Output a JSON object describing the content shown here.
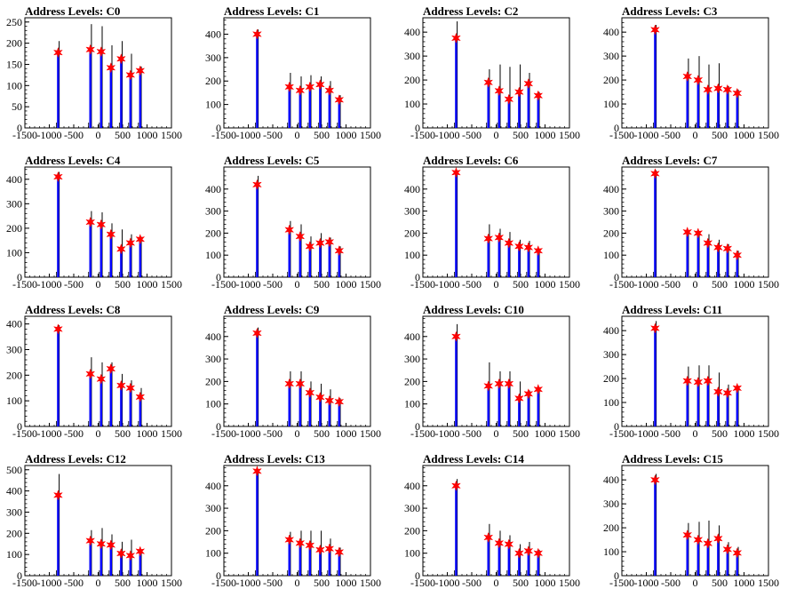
{
  "chart_data": [
    {
      "type": "bar",
      "title": "Address Levels: C0",
      "xlim": [
        -1500,
        1500
      ],
      "ylim": [
        0,
        260
      ],
      "yticks": [
        0,
        50,
        100,
        150,
        200,
        250
      ],
      "xticks": [
        -1500,
        -1000,
        -500,
        0,
        500,
        1000,
        1500
      ],
      "series": [
        {
          "values": [
            {
              "x": -820,
              "y": 205,
              "peak": 178
            },
            {
              "x": -160,
              "y": 245,
              "peak": 185
            },
            {
              "x": 60,
              "y": 240,
              "peak": 180
            },
            {
              "x": 260,
              "y": 195,
              "peak": 142
            },
            {
              "x": 470,
              "y": 205,
              "peak": 163
            },
            {
              "x": 660,
              "y": 175,
              "peak": 125
            },
            {
              "x": 860,
              "y": 145,
              "peak": 135
            }
          ]
        }
      ]
    },
    {
      "type": "bar",
      "title": "Address Levels: C1",
      "xlim": [
        -1500,
        1500
      ],
      "ylim": [
        0,
        470
      ],
      "yticks": [
        0,
        100,
        200,
        300,
        400
      ],
      "xticks": [
        -1500,
        -1000,
        -500,
        0,
        500,
        1000,
        1500
      ],
      "series": [
        {
          "values": [
            {
              "x": -820,
              "y": 420,
              "peak": 400
            },
            {
              "x": -160,
              "y": 235,
              "peak": 175
            },
            {
              "x": 60,
              "y": 220,
              "peak": 160
            },
            {
              "x": 260,
              "y": 225,
              "peak": 175
            },
            {
              "x": 470,
              "y": 220,
              "peak": 185
            },
            {
              "x": 660,
              "y": 200,
              "peak": 160
            },
            {
              "x": 860,
              "y": 140,
              "peak": 120
            }
          ]
        }
      ]
    },
    {
      "type": "bar",
      "title": "Address Levels: C2",
      "xlim": [
        -1500,
        1500
      ],
      "ylim": [
        0,
        460
      ],
      "yticks": [
        0,
        100,
        200,
        300,
        400
      ],
      "xticks": [
        -1500,
        -1000,
        -500,
        0,
        500,
        1000,
        1500
      ],
      "series": [
        {
          "values": [
            {
              "x": -820,
              "y": 445,
              "peak": 375
            },
            {
              "x": -160,
              "y": 245,
              "peak": 190
            },
            {
              "x": 60,
              "y": 265,
              "peak": 155
            },
            {
              "x": 260,
              "y": 255,
              "peak": 120
            },
            {
              "x": 470,
              "y": 265,
              "peak": 150
            },
            {
              "x": 660,
              "y": 230,
              "peak": 185
            },
            {
              "x": 860,
              "y": 150,
              "peak": 135
            }
          ]
        }
      ]
    },
    {
      "type": "bar",
      "title": "Address Levels: C3",
      "xlim": [
        -1500,
        1500
      ],
      "ylim": [
        0,
        460
      ],
      "yticks": [
        0,
        100,
        200,
        300,
        400
      ],
      "xticks": [
        -1500,
        -1000,
        -500,
        0,
        500,
        1000,
        1500
      ],
      "series": [
        {
          "values": [
            {
              "x": -820,
              "y": 430,
              "peak": 410
            },
            {
              "x": -160,
              "y": 290,
              "peak": 215
            },
            {
              "x": 60,
              "y": 300,
              "peak": 200
            },
            {
              "x": 260,
              "y": 265,
              "peak": 160
            },
            {
              "x": 470,
              "y": 270,
              "peak": 165
            },
            {
              "x": 660,
              "y": 175,
              "peak": 160
            },
            {
              "x": 860,
              "y": 160,
              "peak": 145
            }
          ]
        }
      ]
    },
    {
      "type": "bar",
      "title": "Address Levels: C4",
      "xlim": [
        -1500,
        1500
      ],
      "ylim": [
        0,
        450
      ],
      "yticks": [
        0,
        100,
        200,
        300,
        400
      ],
      "xticks": [
        -1500,
        -1000,
        -500,
        0,
        500,
        1000,
        1500
      ],
      "series": [
        {
          "values": [
            {
              "x": -820,
              "y": 430,
              "peak": 410
            },
            {
              "x": -160,
              "y": 270,
              "peak": 225
            },
            {
              "x": 60,
              "y": 265,
              "peak": 215
            },
            {
              "x": 260,
              "y": 220,
              "peak": 175
            },
            {
              "x": 470,
              "y": 195,
              "peak": 115
            },
            {
              "x": 660,
              "y": 175,
              "peak": 140
            },
            {
              "x": 860,
              "y": 165,
              "peak": 155
            }
          ]
        }
      ]
    },
    {
      "type": "bar",
      "title": "Address Levels: C5",
      "xlim": [
        -1500,
        1500
      ],
      "ylim": [
        0,
        500
      ],
      "yticks": [
        0,
        100,
        200,
        300,
        400
      ],
      "xticks": [
        -1500,
        -1000,
        -500,
        0,
        500,
        1000,
        1500
      ],
      "series": [
        {
          "values": [
            {
              "x": -820,
              "y": 460,
              "peak": 420
            },
            {
              "x": -160,
              "y": 255,
              "peak": 215
            },
            {
              "x": 60,
              "y": 240,
              "peak": 185
            },
            {
              "x": 260,
              "y": 185,
              "peak": 140
            },
            {
              "x": 470,
              "y": 200,
              "peak": 155
            },
            {
              "x": 660,
              "y": 180,
              "peak": 160
            },
            {
              "x": 860,
              "y": 140,
              "peak": 120
            }
          ]
        }
      ]
    },
    {
      "type": "bar",
      "title": "Address Levels: C6",
      "xlim": [
        -1500,
        1500
      ],
      "ylim": [
        0,
        500
      ],
      "yticks": [
        0,
        100,
        200,
        300,
        400
      ],
      "xticks": [
        -1500,
        -1000,
        -500,
        0,
        500,
        1000,
        1500
      ],
      "series": [
        {
          "values": [
            {
              "x": -820,
              "y": 485,
              "peak": 475
            },
            {
              "x": -160,
              "y": 240,
              "peak": 175
            },
            {
              "x": 60,
              "y": 220,
              "peak": 180
            },
            {
              "x": 260,
              "y": 205,
              "peak": 155
            },
            {
              "x": 470,
              "y": 170,
              "peak": 140
            },
            {
              "x": 660,
              "y": 165,
              "peak": 135
            },
            {
              "x": 860,
              "y": 130,
              "peak": 120
            }
          ]
        }
      ]
    },
    {
      "type": "bar",
      "title": "Address Levels: C7",
      "xlim": [
        -1500,
        1500
      ],
      "ylim": [
        0,
        500
      ],
      "yticks": [
        0,
        100,
        200,
        300,
        400
      ],
      "xticks": [
        -1500,
        -1000,
        -500,
        0,
        500,
        1000,
        1500
      ],
      "series": [
        {
          "values": [
            {
              "x": -820,
              "y": 485,
              "peak": 470
            },
            {
              "x": -160,
              "y": 210,
              "peak": 205
            },
            {
              "x": 60,
              "y": 210,
              "peak": 200
            },
            {
              "x": 260,
              "y": 195,
              "peak": 155
            },
            {
              "x": 470,
              "y": 170,
              "peak": 135
            },
            {
              "x": 660,
              "y": 150,
              "peak": 130
            },
            {
              "x": 860,
              "y": 120,
              "peak": 100
            }
          ]
        }
      ]
    },
    {
      "type": "bar",
      "title": "Address Levels: C8",
      "xlim": [
        -1500,
        1500
      ],
      "ylim": [
        0,
        430
      ],
      "yticks": [
        0,
        100,
        200,
        300,
        400
      ],
      "xticks": [
        -1500,
        -1000,
        -500,
        0,
        500,
        1000,
        1500
      ],
      "series": [
        {
          "values": [
            {
              "x": -820,
              "y": 395,
              "peak": 380
            },
            {
              "x": -160,
              "y": 270,
              "peak": 205
            },
            {
              "x": 60,
              "y": 250,
              "peak": 185
            },
            {
              "x": 260,
              "y": 250,
              "peak": 225
            },
            {
              "x": 470,
              "y": 205,
              "peak": 160
            },
            {
              "x": 660,
              "y": 180,
              "peak": 150
            },
            {
              "x": 860,
              "y": 150,
              "peak": 115
            }
          ]
        }
      ]
    },
    {
      "type": "bar",
      "title": "Address Levels: C9",
      "xlim": [
        -1500,
        1500
      ],
      "ylim": [
        0,
        490
      ],
      "yticks": [
        0,
        100,
        200,
        300,
        400
      ],
      "xticks": [
        -1500,
        -1000,
        -500,
        0,
        500,
        1000,
        1500
      ],
      "series": [
        {
          "values": [
            {
              "x": -820,
              "y": 440,
              "peak": 415
            },
            {
              "x": -160,
              "y": 245,
              "peak": 190
            },
            {
              "x": 60,
              "y": 245,
              "peak": 190
            },
            {
              "x": 260,
              "y": 200,
              "peak": 150
            },
            {
              "x": 470,
              "y": 190,
              "peak": 130
            },
            {
              "x": 660,
              "y": 165,
              "peak": 115
            },
            {
              "x": 860,
              "y": 125,
              "peak": 110
            }
          ]
        }
      ]
    },
    {
      "type": "bar",
      "title": "Address Levels: C10",
      "xlim": [
        -1500,
        1500
      ],
      "ylim": [
        0,
        490
      ],
      "yticks": [
        0,
        100,
        200,
        300,
        400
      ],
      "xticks": [
        -1500,
        -1000,
        -500,
        0,
        500,
        1000,
        1500
      ],
      "series": [
        {
          "values": [
            {
              "x": -820,
              "y": 455,
              "peak": 400
            },
            {
              "x": -160,
              "y": 285,
              "peak": 180
            },
            {
              "x": 60,
              "y": 245,
              "peak": 190
            },
            {
              "x": 260,
              "y": 245,
              "peak": 190
            },
            {
              "x": 470,
              "y": 200,
              "peak": 125
            },
            {
              "x": 660,
              "y": 160,
              "peak": 145
            },
            {
              "x": 860,
              "y": 175,
              "peak": 165
            }
          ]
        }
      ]
    },
    {
      "type": "bar",
      "title": "Address Levels: C11",
      "xlim": [
        -1500,
        1500
      ],
      "ylim": [
        0,
        460
      ],
      "yticks": [
        0,
        100,
        200,
        300,
        400
      ],
      "xticks": [
        -1500,
        -1000,
        -500,
        0,
        500,
        1000,
        1500
      ],
      "series": [
        {
          "values": [
            {
              "x": -820,
              "y": 440,
              "peak": 410
            },
            {
              "x": -160,
              "y": 250,
              "peak": 190
            },
            {
              "x": 60,
              "y": 255,
              "peak": 185
            },
            {
              "x": 260,
              "y": 255,
              "peak": 190
            },
            {
              "x": 470,
              "y": 225,
              "peak": 145
            },
            {
              "x": 660,
              "y": 175,
              "peak": 140
            },
            {
              "x": 860,
              "y": 170,
              "peak": 160
            }
          ]
        }
      ]
    },
    {
      "type": "bar",
      "title": "Address Levels: C12",
      "xlim": [
        -1500,
        1500
      ],
      "ylim": [
        0,
        520
      ],
      "yticks": [
        0,
        100,
        200,
        300,
        400,
        500
      ],
      "xticks": [
        -1500,
        -1000,
        -500,
        0,
        500,
        1000,
        1500
      ],
      "series": [
        {
          "values": [
            {
              "x": -820,
              "y": 480,
              "peak": 380
            },
            {
              "x": -160,
              "y": 215,
              "peak": 165
            },
            {
              "x": 60,
              "y": 225,
              "peak": 150
            },
            {
              "x": 260,
              "y": 195,
              "peak": 145
            },
            {
              "x": 470,
              "y": 160,
              "peak": 105
            },
            {
              "x": 660,
              "y": 170,
              "peak": 95
            },
            {
              "x": 860,
              "y": 125,
              "peak": 115
            }
          ]
        }
      ]
    },
    {
      "type": "bar",
      "title": "Address Levels: C13",
      "xlim": [
        -1500,
        1500
      ],
      "ylim": [
        0,
        490
      ],
      "yticks": [
        0,
        100,
        200,
        300,
        400
      ],
      "xticks": [
        -1500,
        -1000,
        -500,
        0,
        500,
        1000,
        1500
      ],
      "series": [
        {
          "values": [
            {
              "x": -820,
              "y": 470,
              "peak": 465
            },
            {
              "x": -160,
              "y": 195,
              "peak": 160
            },
            {
              "x": 60,
              "y": 200,
              "peak": 145
            },
            {
              "x": 260,
              "y": 200,
              "peak": 135
            },
            {
              "x": 470,
              "y": 200,
              "peak": 115
            },
            {
              "x": 660,
              "y": 165,
              "peak": 120
            },
            {
              "x": 860,
              "y": 125,
              "peak": 105
            }
          ]
        }
      ]
    },
    {
      "type": "bar",
      "title": "Address Levels: C14",
      "xlim": [
        -1500,
        1500
      ],
      "ylim": [
        0,
        490
      ],
      "yticks": [
        0,
        100,
        200,
        300,
        400
      ],
      "xticks": [
        -1500,
        -1000,
        -500,
        0,
        500,
        1000,
        1500
      ],
      "series": [
        {
          "values": [
            {
              "x": -820,
              "y": 430,
              "peak": 400
            },
            {
              "x": -160,
              "y": 230,
              "peak": 170
            },
            {
              "x": 60,
              "y": 200,
              "peak": 145
            },
            {
              "x": 260,
              "y": 180,
              "peak": 140
            },
            {
              "x": 470,
              "y": 140,
              "peak": 100
            },
            {
              "x": 660,
              "y": 150,
              "peak": 110
            },
            {
              "x": 860,
              "y": 115,
              "peak": 100
            }
          ]
        }
      ]
    },
    {
      "type": "bar",
      "title": "Address Levels: C15",
      "xlim": [
        -1500,
        1500
      ],
      "ylim": [
        0,
        460
      ],
      "yticks": [
        0,
        100,
        200,
        300,
        400
      ],
      "xticks": [
        -1500,
        -1000,
        -500,
        0,
        500,
        1000,
        1500
      ],
      "series": [
        {
          "values": [
            {
              "x": -820,
              "y": 425,
              "peak": 400
            },
            {
              "x": -160,
              "y": 220,
              "peak": 170
            },
            {
              "x": 60,
              "y": 225,
              "peak": 150
            },
            {
              "x": 260,
              "y": 230,
              "peak": 135
            },
            {
              "x": 470,
              "y": 210,
              "peak": 155
            },
            {
              "x": 660,
              "y": 140,
              "peak": 110
            },
            {
              "x": 860,
              "y": 120,
              "peak": 95
            }
          ]
        }
      ]
    }
  ],
  "colors": {
    "histogram": "#0000ff",
    "spike": "#000000",
    "marker": "#ff0000",
    "axis": "#000000"
  }
}
